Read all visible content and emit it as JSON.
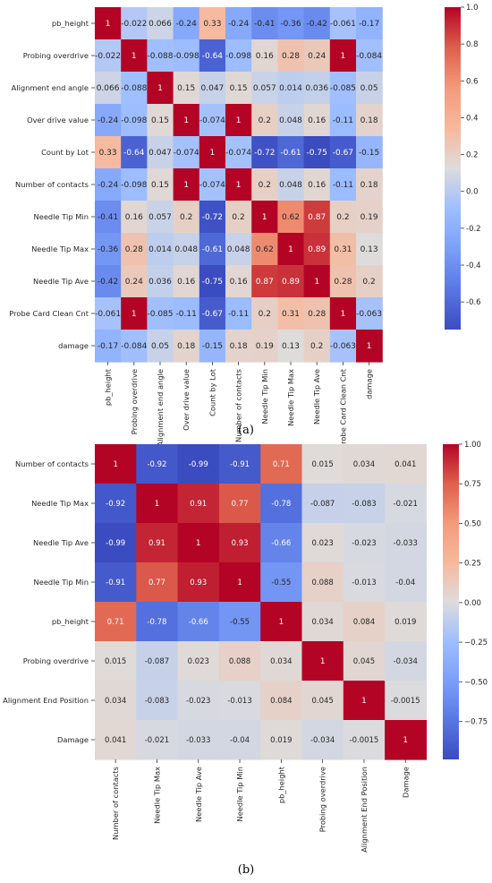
{
  "chart_data": [
    {
      "type": "heatmap",
      "panel_label": "(a)",
      "labels": [
        "pb_height",
        "Probing overdrive",
        "Alignment end angle",
        "Over drive value",
        "Count by Lot",
        "Number of contacts",
        "Needle Tip Min",
        "Needle Tip Max",
        "Needle Tip Ave",
        "Probe Card Clean Cnt",
        "damage"
      ],
      "matrix": [
        [
          1,
          -0.022,
          0.066,
          -0.24,
          0.33,
          -0.24,
          -0.41,
          -0.36,
          -0.42,
          -0.061,
          -0.17
        ],
        [
          -0.022,
          1,
          -0.088,
          -0.098,
          -0.64,
          -0.098,
          0.16,
          0.28,
          0.24,
          1,
          -0.084
        ],
        [
          0.066,
          -0.088,
          1,
          0.15,
          0.047,
          0.15,
          0.057,
          0.014,
          0.036,
          -0.085,
          0.05
        ],
        [
          -0.24,
          -0.098,
          0.15,
          1,
          -0.074,
          1,
          0.2,
          0.048,
          0.16,
          -0.11,
          0.18
        ],
        [
          0.33,
          -0.64,
          0.047,
          -0.074,
          1,
          -0.074,
          -0.72,
          -0.61,
          -0.75,
          -0.67,
          -0.15
        ],
        [
          -0.24,
          -0.098,
          0.15,
          1,
          -0.074,
          1,
          0.2,
          0.048,
          0.16,
          -0.11,
          0.18
        ],
        [
          -0.41,
          0.16,
          0.057,
          0.2,
          -0.72,
          0.2,
          1,
          0.62,
          0.87,
          0.2,
          0.19
        ],
        [
          -0.36,
          0.28,
          0.014,
          0.048,
          -0.61,
          0.048,
          0.62,
          1,
          0.89,
          0.31,
          0.13
        ],
        [
          -0.42,
          0.24,
          0.036,
          0.16,
          -0.75,
          0.16,
          0.87,
          0.89,
          1,
          0.28,
          0.2
        ],
        [
          -0.061,
          1,
          -0.085,
          -0.11,
          -0.67,
          -0.11,
          0.2,
          0.31,
          0.28,
          1,
          -0.063
        ],
        [
          -0.17,
          -0.084,
          0.05,
          0.18,
          -0.15,
          0.18,
          0.19,
          0.13,
          0.2,
          -0.063,
          1
        ]
      ],
      "vmin": -0.75,
      "vmax": 1.0,
      "colormap": "coolwarm",
      "colorbar_ticks": [
        1.0,
        0.8,
        0.6,
        0.4,
        0.2,
        0.0,
        -0.2,
        -0.4,
        -0.6
      ],
      "colorbar_tick_labels": [
        "1.0",
        "0.8",
        "0.6",
        "0.4",
        "0.2",
        "0.0",
        "-0.2",
        "-0.4",
        "-0.6"
      ]
    },
    {
      "type": "heatmap",
      "panel_label": "(b)",
      "labels": [
        "Number of contacts",
        "Needle Tip Max",
        "Needle Tip Ave",
        "Needle Tip Min",
        "pb_height",
        "Probing overdrive",
        "Alignment End Position",
        "Damage"
      ],
      "matrix": [
        [
          1,
          -0.92,
          -0.99,
          -0.91,
          0.71,
          0.015,
          0.034,
          0.041
        ],
        [
          -0.92,
          1,
          0.91,
          0.77,
          -0.78,
          -0.087,
          -0.083,
          -0.021
        ],
        [
          -0.99,
          0.91,
          1,
          0.93,
          -0.66,
          0.023,
          -0.023,
          -0.033
        ],
        [
          -0.91,
          0.77,
          0.93,
          1,
          -0.55,
          0.088,
          -0.013,
          -0.04
        ],
        [
          0.71,
          -0.78,
          -0.66,
          -0.55,
          1,
          0.034,
          0.084,
          0.019
        ],
        [
          0.015,
          -0.087,
          0.023,
          0.088,
          0.034,
          1,
          0.045,
          -0.034
        ],
        [
          0.034,
          -0.083,
          -0.023,
          -0.013,
          0.084,
          0.045,
          1,
          -0.0015
        ],
        [
          0.041,
          -0.021,
          -0.033,
          -0.04,
          0.019,
          -0.034,
          -0.0015,
          1
        ]
      ],
      "vmin": -0.99,
      "vmax": 1.0,
      "colormap": "coolwarm",
      "colorbar_ticks": [
        1.0,
        0.75,
        0.5,
        0.25,
        0.0,
        -0.25,
        -0.5,
        -0.75
      ],
      "colorbar_tick_labels": [
        "1.00",
        "0.75",
        "0.50",
        "0.25",
        "0.00",
        "−0.25",
        "−0.50",
        "−0.75"
      ]
    }
  ]
}
